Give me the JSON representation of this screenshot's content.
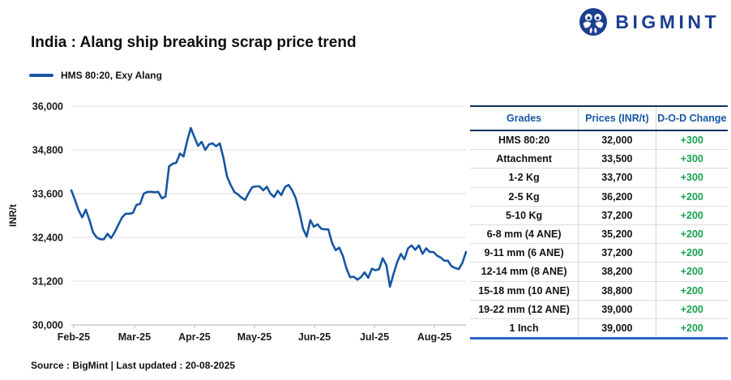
{
  "brand": {
    "name": "BIGMINT",
    "color": "#1b3e91"
  },
  "title": "India : Alang ship breaking scrap price trend",
  "legend": {
    "label": "HMS 80:20, Exy Alang",
    "line_color": "#1656a3"
  },
  "source_note": "Source : BigMint | Last updated : 20-08-2025",
  "chart_data": {
    "type": "line",
    "title": "India : Alang ship breaking scrap price trend",
    "ylabel": "INR/t",
    "xlabel": "",
    "ylim": [
      30000,
      36000
    ],
    "ytick_step": 1200,
    "ytick_labels": [
      "30,000",
      "31,200",
      "32,400",
      "33,600",
      "34,800",
      "36,000"
    ],
    "grid": "horizontal",
    "legend_position": "top-left",
    "x_ticks": [
      {
        "label": "Feb-25",
        "pos": 0.006
      },
      {
        "label": "Mar-25",
        "pos": 0.16
      },
      {
        "label": "Apr-25",
        "pos": 0.312
      },
      {
        "label": "May-25",
        "pos": 0.464
      },
      {
        "label": "Jun-25",
        "pos": 0.616
      },
      {
        "label": "Jul-25",
        "pos": 0.768
      },
      {
        "label": "Aug-25",
        "pos": 0.92
      }
    ],
    "series": [
      {
        "name": "HMS 80:20, Exy Alang",
        "color": "#1656a3",
        "values": [
          33690,
          33430,
          33150,
          32950,
          33160,
          32880,
          32540,
          32400,
          32350,
          32350,
          32500,
          32380,
          32550,
          32750,
          32950,
          33050,
          33050,
          33070,
          33290,
          33320,
          33600,
          33650,
          33650,
          33640,
          33650,
          33470,
          33520,
          34350,
          34420,
          34450,
          34700,
          34620,
          35050,
          35400,
          35150,
          34910,
          35020,
          34800,
          34950,
          34980,
          34900,
          34980,
          34580,
          34070,
          33840,
          33650,
          33580,
          33490,
          33430,
          33620,
          33780,
          33800,
          33800,
          33690,
          33790,
          33600,
          33510,
          33680,
          33560,
          33780,
          33840,
          33690,
          33470,
          33090,
          32640,
          32420,
          32870,
          32690,
          32760,
          32640,
          32620,
          32620,
          32250,
          32050,
          32120,
          31890,
          31540,
          31310,
          31320,
          31240,
          31310,
          31440,
          31290,
          31540,
          31500,
          31530,
          31830,
          31640,
          31050,
          31400,
          31720,
          31950,
          31800,
          32100,
          32180,
          32060,
          32180,
          31950,
          32100,
          32000,
          32000,
          31900,
          31850,
          31760,
          31760,
          31610,
          31560,
          31530,
          31700,
          32000
        ]
      }
    ]
  },
  "table": {
    "headers": [
      "Grades",
      "Prices (INR/t)",
      "D-O-D Change"
    ],
    "rows": [
      [
        "HMS 80:20",
        "32,000",
        "+300"
      ],
      [
        "Attachment",
        "33,500",
        "+300"
      ],
      [
        "1-2 Kg",
        "33,700",
        "+300"
      ],
      [
        "2-5 Kg",
        "36,200",
        "+200"
      ],
      [
        "5-10 Kg",
        "37,200",
        "+200"
      ],
      [
        "6-8 mm (4 ANE)",
        "35,200",
        "+200"
      ],
      [
        "9-11 mm (6 ANE)",
        "37,200",
        "+200"
      ],
      [
        "12-14 mm (8 ANE)",
        "38,200",
        "+200"
      ],
      [
        "15-18 mm (10 ANE)",
        "38,800",
        "+200"
      ],
      [
        "19-22 mm (12 ANE)",
        "39,000",
        "+200"
      ],
      [
        "1 Inch",
        "39,000",
        "+200"
      ]
    ],
    "header_color": "#1857a6",
    "change_color": "#17a24f"
  }
}
